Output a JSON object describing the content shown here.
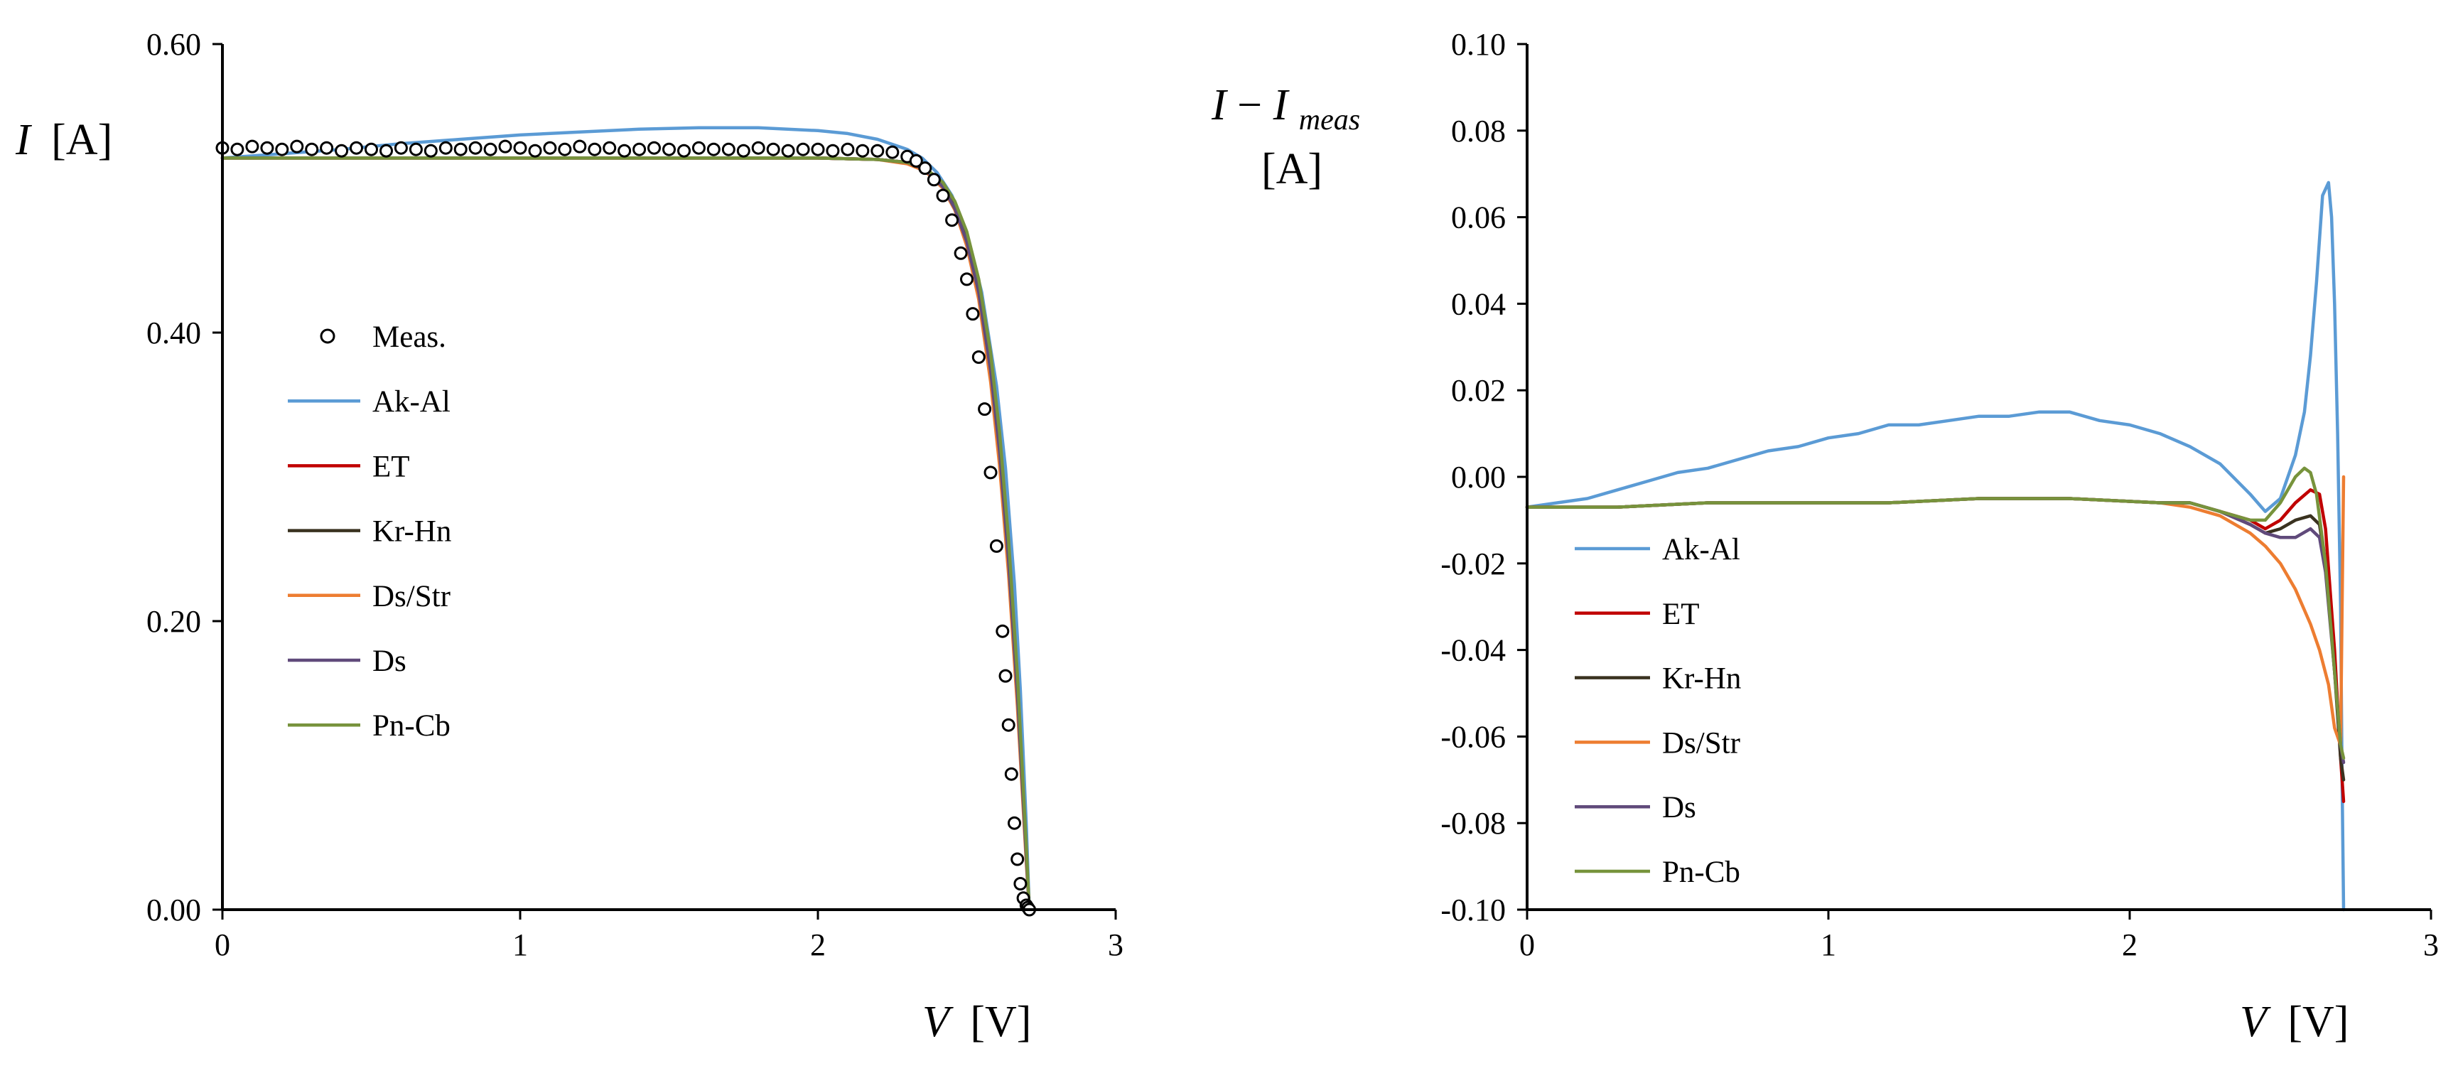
{
  "chart_data": [
    {
      "type": "line",
      "title": "",
      "xlabel": {
        "symbol": "V",
        "unit": "[V]"
      },
      "ylabel": {
        "symbol": "I",
        "unit": "[A]"
      },
      "xlim": [
        0,
        3
      ],
      "ylim": [
        0,
        0.6
      ],
      "x_ticks": [
        0,
        1,
        2,
        3
      ],
      "x_tick_labels": [
        "0",
        "1",
        "2",
        "3"
      ],
      "y_ticks": [
        0,
        0.2,
        0.4,
        0.6
      ],
      "y_tick_labels": [
        "0.00",
        "0.20",
        "0.40",
        "0.60"
      ],
      "grid": false,
      "legend_position": "center-left",
      "legend": [
        "Meas.",
        "Ak-Al",
        "ET",
        "Kr-Hn",
        "Ds/Str",
        "Ds",
        "Pn-Cb"
      ],
      "measured": {
        "name": "Meas.",
        "marker": "open-circle",
        "x": [
          0.0,
          0.05,
          0.1,
          0.15,
          0.2,
          0.25,
          0.3,
          0.35,
          0.4,
          0.45,
          0.5,
          0.55,
          0.6,
          0.65,
          0.7,
          0.75,
          0.8,
          0.85,
          0.9,
          0.95,
          1.0,
          1.05,
          1.1,
          1.15,
          1.2,
          1.25,
          1.3,
          1.35,
          1.4,
          1.45,
          1.5,
          1.55,
          1.6,
          1.65,
          1.7,
          1.75,
          1.8,
          1.85,
          1.9,
          1.95,
          2.0,
          2.05,
          2.1,
          2.15,
          2.2,
          2.25,
          2.3,
          2.33,
          2.36,
          2.39,
          2.42,
          2.45,
          2.48,
          2.5,
          2.52,
          2.54,
          2.56,
          2.58,
          2.6,
          2.62,
          2.63,
          2.64,
          2.65,
          2.66,
          2.67,
          2.68,
          2.69,
          2.7,
          2.705,
          2.71
        ],
        "y": [
          0.528,
          0.527,
          0.529,
          0.528,
          0.527,
          0.529,
          0.527,
          0.528,
          0.526,
          0.528,
          0.527,
          0.526,
          0.528,
          0.527,
          0.526,
          0.528,
          0.527,
          0.528,
          0.527,
          0.529,
          0.528,
          0.526,
          0.528,
          0.527,
          0.529,
          0.527,
          0.528,
          0.526,
          0.527,
          0.528,
          0.527,
          0.526,
          0.528,
          0.527,
          0.527,
          0.526,
          0.528,
          0.527,
          0.526,
          0.527,
          0.527,
          0.526,
          0.527,
          0.526,
          0.526,
          0.525,
          0.522,
          0.519,
          0.514,
          0.506,
          0.495,
          0.478,
          0.455,
          0.437,
          0.413,
          0.383,
          0.347,
          0.303,
          0.252,
          0.193,
          0.162,
          0.128,
          0.094,
          0.06,
          0.035,
          0.018,
          0.008,
          0.003,
          0.0015,
          0.0
        ]
      },
      "series": [
        {
          "name": "Ak-Al",
          "color": "#5b9bd5",
          "x": [
            0.0,
            0.2,
            0.4,
            0.6,
            0.8,
            1.0,
            1.2,
            1.4,
            1.6,
            1.8,
            2.0,
            2.1,
            2.2,
            2.3,
            2.35,
            2.4,
            2.45,
            2.5,
            2.55,
            2.6,
            2.63,
            2.66,
            2.68,
            2.7,
            2.71
          ],
          "y": [
            0.521,
            0.524,
            0.527,
            0.531,
            0.534,
            0.537,
            0.539,
            0.541,
            0.542,
            0.542,
            0.54,
            0.538,
            0.534,
            0.527,
            0.521,
            0.511,
            0.495,
            0.469,
            0.428,
            0.363,
            0.306,
            0.226,
            0.152,
            0.058,
            0.0
          ]
        },
        {
          "name": "ET",
          "color": "#c00000",
          "x": [
            0.0,
            0.5,
            1.0,
            1.5,
            2.0,
            2.2,
            2.3,
            2.36,
            2.42,
            2.46,
            2.5,
            2.54,
            2.58,
            2.61,
            2.64,
            2.67,
            2.7,
            2.71
          ],
          "y": [
            0.521,
            0.521,
            0.521,
            0.521,
            0.521,
            0.52,
            0.518,
            0.514,
            0.503,
            0.489,
            0.467,
            0.432,
            0.379,
            0.323,
            0.248,
            0.154,
            0.038,
            0.0
          ]
        },
        {
          "name": "Kr-Hn",
          "color": "#3a3220",
          "x": [
            0.0,
            0.5,
            1.0,
            1.5,
            2.0,
            2.2,
            2.3,
            2.36,
            2.42,
            2.46,
            2.5,
            2.54,
            2.58,
            2.61,
            2.64,
            2.67,
            2.7,
            2.71
          ],
          "y": [
            0.521,
            0.521,
            0.521,
            0.521,
            0.521,
            0.52,
            0.518,
            0.513,
            0.502,
            0.488,
            0.465,
            0.43,
            0.377,
            0.321,
            0.246,
            0.152,
            0.037,
            0.0
          ]
        },
        {
          "name": "Ds/Str",
          "color": "#ed7d31",
          "x": [
            0.0,
            0.5,
            1.0,
            1.5,
            2.0,
            2.2,
            2.3,
            2.36,
            2.42,
            2.46,
            2.5,
            2.54,
            2.58,
            2.61,
            2.64,
            2.67,
            2.7,
            2.71
          ],
          "y": [
            0.521,
            0.521,
            0.521,
            0.521,
            0.521,
            0.52,
            0.517,
            0.512,
            0.5,
            0.485,
            0.46,
            0.423,
            0.366,
            0.308,
            0.233,
            0.141,
            0.032,
            0.0
          ]
        },
        {
          "name": "Ds",
          "color": "#604a7b",
          "x": [
            0.0,
            0.5,
            1.0,
            1.5,
            2.0,
            2.2,
            2.3,
            2.36,
            2.42,
            2.46,
            2.5,
            2.54,
            2.58,
            2.61,
            2.64,
            2.67,
            2.7,
            2.71
          ],
          "y": [
            0.521,
            0.521,
            0.521,
            0.521,
            0.521,
            0.52,
            0.518,
            0.513,
            0.501,
            0.486,
            0.463,
            0.428,
            0.374,
            0.318,
            0.243,
            0.15,
            0.036,
            0.0
          ]
        },
        {
          "name": "Pn-Cb",
          "color": "#77933c",
          "x": [
            0.0,
            0.5,
            1.0,
            1.5,
            2.0,
            2.2,
            2.3,
            2.36,
            2.42,
            2.46,
            2.5,
            2.54,
            2.58,
            2.61,
            2.64,
            2.67,
            2.7,
            2.71
          ],
          "y": [
            0.521,
            0.521,
            0.521,
            0.521,
            0.521,
            0.52,
            0.518,
            0.514,
            0.504,
            0.491,
            0.47,
            0.437,
            0.386,
            0.331,
            0.257,
            0.163,
            0.043,
            0.0
          ]
        }
      ]
    },
    {
      "type": "line",
      "title": "",
      "xlabel": {
        "symbol": "V",
        "unit": "[V]"
      },
      "ylabel": {
        "symbol": "I",
        "minus": " − ",
        "symbol2": "I",
        "subscript": "meas",
        "unit": "[A]"
      },
      "xlim": [
        0,
        3
      ],
      "ylim": [
        -0.1,
        0.1
      ],
      "x_ticks": [
        0,
        1,
        2,
        3
      ],
      "x_tick_labels": [
        "0",
        "1",
        "2",
        "3"
      ],
      "y_ticks": [
        -0.1,
        -0.08,
        -0.06,
        -0.04,
        -0.02,
        0.0,
        0.02,
        0.04,
        0.06,
        0.08,
        0.1
      ],
      "y_tick_labels": [
        "-0.10",
        "-0.08",
        "-0.06",
        "-0.04",
        "-0.02",
        "0.00",
        "0.02",
        "0.04",
        "0.06",
        "0.08",
        "0.10"
      ],
      "grid": false,
      "legend_position": "lower-left",
      "legend": [
        "Ak-Al",
        "ET",
        "Kr-Hn",
        "Ds/Str",
        "Ds",
        "Pn-Cb"
      ],
      "series": [
        {
          "name": "Ak-Al",
          "color": "#5b9bd5",
          "x": [
            0.0,
            0.1,
            0.2,
            0.3,
            0.4,
            0.5,
            0.6,
            0.7,
            0.8,
            0.9,
            1.0,
            1.1,
            1.2,
            1.3,
            1.4,
            1.5,
            1.6,
            1.7,
            1.8,
            1.9,
            2.0,
            2.1,
            2.2,
            2.3,
            2.4,
            2.45,
            2.5,
            2.55,
            2.58,
            2.6,
            2.62,
            2.64,
            2.66,
            2.67,
            2.68,
            2.69,
            2.7,
            2.705,
            2.71
          ],
          "y": [
            -0.007,
            -0.006,
            -0.005,
            -0.003,
            -0.001,
            0.001,
            0.002,
            0.004,
            0.006,
            0.007,
            0.009,
            0.01,
            0.012,
            0.012,
            0.013,
            0.014,
            0.014,
            0.015,
            0.015,
            0.013,
            0.012,
            0.01,
            0.007,
            0.003,
            -0.004,
            -0.008,
            -0.005,
            0.005,
            0.015,
            0.028,
            0.045,
            0.065,
            0.068,
            0.06,
            0.04,
            0.01,
            -0.03,
            -0.07,
            -0.1
          ]
        },
        {
          "name": "ET",
          "color": "#c00000",
          "x": [
            0.0,
            0.3,
            0.6,
            0.9,
            1.2,
            1.5,
            1.8,
            2.1,
            2.2,
            2.3,
            2.4,
            2.45,
            2.5,
            2.55,
            2.6,
            2.63,
            2.65,
            2.68,
            2.7,
            2.71
          ],
          "y": [
            -0.007,
            -0.007,
            -0.006,
            -0.006,
            -0.006,
            -0.005,
            -0.005,
            -0.006,
            -0.006,
            -0.008,
            -0.01,
            -0.012,
            -0.01,
            -0.006,
            -0.003,
            -0.004,
            -0.012,
            -0.04,
            -0.065,
            -0.075
          ]
        },
        {
          "name": "Kr-Hn",
          "color": "#3a3220",
          "x": [
            0.0,
            0.3,
            0.6,
            0.9,
            1.2,
            1.5,
            1.8,
            2.1,
            2.2,
            2.3,
            2.4,
            2.45,
            2.5,
            2.55,
            2.6,
            2.63,
            2.65,
            2.68,
            2.7,
            2.71
          ],
          "y": [
            -0.007,
            -0.007,
            -0.006,
            -0.006,
            -0.006,
            -0.005,
            -0.005,
            -0.006,
            -0.006,
            -0.008,
            -0.011,
            -0.013,
            -0.012,
            -0.01,
            -0.009,
            -0.011,
            -0.02,
            -0.045,
            -0.065,
            -0.07
          ]
        },
        {
          "name": "Ds/Str",
          "color": "#ed7d31",
          "x": [
            0.0,
            0.3,
            0.6,
            0.9,
            1.2,
            1.5,
            1.8,
            2.1,
            2.2,
            2.3,
            2.4,
            2.45,
            2.5,
            2.55,
            2.6,
            2.63,
            2.66,
            2.68,
            2.7,
            2.705,
            2.71
          ],
          "y": [
            -0.007,
            -0.007,
            -0.006,
            -0.006,
            -0.006,
            -0.005,
            -0.005,
            -0.006,
            -0.007,
            -0.009,
            -0.013,
            -0.016,
            -0.02,
            -0.026,
            -0.034,
            -0.04,
            -0.048,
            -0.058,
            -0.062,
            -0.03,
            0.0
          ]
        },
        {
          "name": "Ds",
          "color": "#604a7b",
          "x": [
            0.0,
            0.3,
            0.6,
            0.9,
            1.2,
            1.5,
            1.8,
            2.1,
            2.2,
            2.3,
            2.4,
            2.45,
            2.5,
            2.55,
            2.6,
            2.63,
            2.65,
            2.68,
            2.7,
            2.71
          ],
          "y": [
            -0.007,
            -0.007,
            -0.006,
            -0.006,
            -0.006,
            -0.005,
            -0.005,
            -0.006,
            -0.006,
            -0.008,
            -0.011,
            -0.013,
            -0.014,
            -0.014,
            -0.012,
            -0.014,
            -0.022,
            -0.045,
            -0.062,
            -0.066
          ]
        },
        {
          "name": "Pn-Cb",
          "color": "#77933c",
          "x": [
            0.0,
            0.3,
            0.6,
            0.9,
            1.2,
            1.5,
            1.8,
            2.1,
            2.2,
            2.3,
            2.4,
            2.45,
            2.5,
            2.55,
            2.58,
            2.6,
            2.62,
            2.65,
            2.68,
            2.7,
            2.71
          ],
          "y": [
            -0.007,
            -0.007,
            -0.006,
            -0.006,
            -0.006,
            -0.005,
            -0.005,
            -0.006,
            -0.006,
            -0.008,
            -0.01,
            -0.01,
            -0.006,
            0.0,
            0.002,
            0.001,
            -0.004,
            -0.02,
            -0.045,
            -0.062,
            -0.065
          ]
        }
      ]
    }
  ]
}
